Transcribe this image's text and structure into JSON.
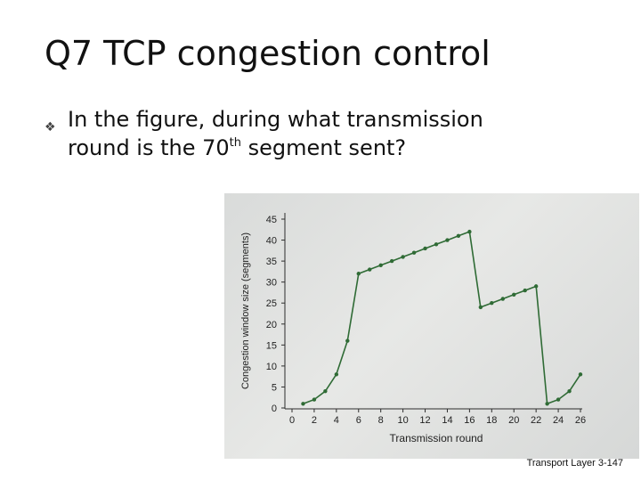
{
  "slide": {
    "title": "Q7 TCP congestion control",
    "bullet_line1": "In the figure, during what transmission",
    "bullet_line2_pre": "round is the 70",
    "bullet_line2_sup": "th",
    "bullet_line2_post": " segment sent?",
    "bullet_icon": "diamond-bullet-icon",
    "footer": "Transport Layer 3-147"
  },
  "chart_data": {
    "type": "line",
    "ylabel": "Congestion window size (segments)",
    "xlabel": "Transmission round",
    "xlim": [
      0,
      26
    ],
    "ylim": [
      0,
      45
    ],
    "xticks": [
      0,
      2,
      4,
      6,
      8,
      10,
      12,
      14,
      16,
      18,
      20,
      22,
      24,
      26
    ],
    "yticks": [
      0,
      5,
      10,
      15,
      20,
      25,
      30,
      35,
      40,
      45
    ],
    "line_color": "#2f6b35",
    "grid": false,
    "series": [
      {
        "x": [
          1,
          2,
          3,
          4,
          5,
          6,
          7,
          8,
          9,
          10,
          11,
          12,
          13,
          14,
          15,
          16,
          17,
          18,
          19,
          20,
          21,
          22,
          23,
          24,
          25,
          26
        ],
        "values": [
          1,
          2,
          4,
          8,
          16,
          32,
          33,
          34,
          35,
          36,
          37,
          38,
          39,
          40,
          41,
          42,
          24,
          25,
          26,
          27,
          28,
          29,
          1,
          2,
          4,
          8
        ]
      }
    ]
  }
}
